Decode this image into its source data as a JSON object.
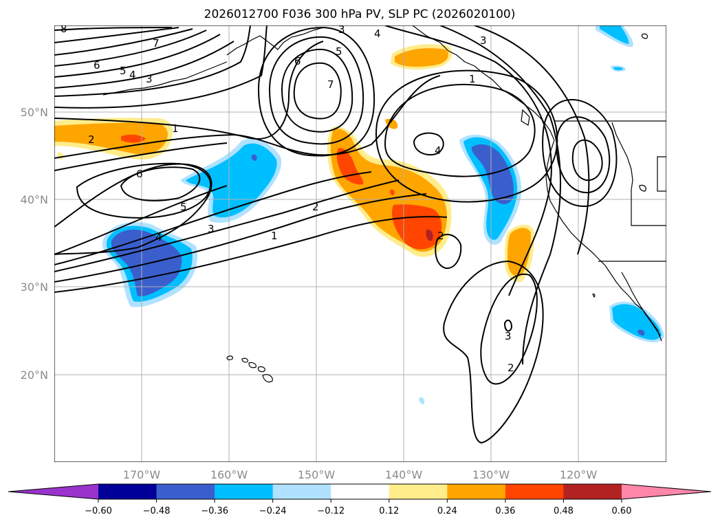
{
  "title": "2026012700 F036 300 hPa PV, SLP PC (2026020100)",
  "lat_labels": [
    "50°N",
    "40°N",
    "30°N",
    "20°N"
  ],
  "lon_labels": [
    "170°W",
    "160°W",
    "150°W",
    "140°W",
    "130°W",
    "120°W"
  ],
  "colorbar": {
    "ticks": [
      "−0.60",
      "−0.48",
      "−0.36",
      "−0.24",
      "−0.12",
      "0.12",
      "0.24",
      "0.36",
      "0.48",
      "0.60"
    ],
    "colors": [
      "#9933cc",
      "#000099",
      "#3a5fcd",
      "#00bfff",
      "#b0e2ff",
      "#ffffff",
      "#ffec8b",
      "#ffa500",
      "#ff4500",
      "#b22222",
      "#ff88aa"
    ]
  },
  "contour_labels": [
    "8",
    "7",
    "6",
    "5",
    "4",
    "3",
    "2",
    "1",
    "3",
    "4",
    "5",
    "6",
    "7",
    "3",
    "4",
    "1",
    "2",
    "6",
    "5",
    "3",
    "4",
    "2",
    "1",
    "3",
    "2"
  ]
}
